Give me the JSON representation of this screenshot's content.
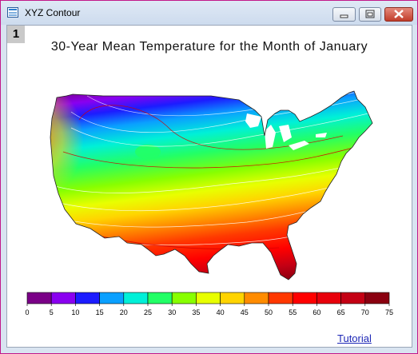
{
  "window": {
    "title": "XYZ Contour",
    "icon": "app-window-icon",
    "controls": [
      "minimize",
      "maximize",
      "close"
    ]
  },
  "page_tab": "1",
  "chart_data": {
    "type": "heatmap",
    "title": "30-Year Mean Temperature for the Month of January",
    "xlabel": "",
    "ylabel": "",
    "colorbar": {
      "ticks": [
        "0",
        "5",
        "10",
        "15",
        "20",
        "25",
        "30",
        "35",
        "40",
        "45",
        "50",
        "55",
        "60",
        "65",
        "70",
        "75"
      ],
      "range": [
        0,
        75
      ],
      "levels": [
        {
          "from": 0,
          "to": 5,
          "color": "#7a0087"
        },
        {
          "from": 5,
          "to": 10,
          "color": "#8a00f0"
        },
        {
          "from": 10,
          "to": 15,
          "color": "#1c1cff"
        },
        {
          "from": 15,
          "to": 20,
          "color": "#0aa0ff"
        },
        {
          "from": 20,
          "to": 25,
          "color": "#00f0d8"
        },
        {
          "from": 25,
          "to": 30,
          "color": "#22ff66"
        },
        {
          "from": 30,
          "to": 35,
          "color": "#88ff00"
        },
        {
          "from": 35,
          "to": 40,
          "color": "#e8ff00"
        },
        {
          "from": 40,
          "to": 45,
          "color": "#ffd400"
        },
        {
          "from": 45,
          "to": 50,
          "color": "#ff8c00"
        },
        {
          "from": 50,
          "to": 55,
          "color": "#ff3800"
        },
        {
          "from": 55,
          "to": 60,
          "color": "#ff0000"
        },
        {
          "from": 60,
          "to": 65,
          "color": "#e8000c"
        },
        {
          "from": 65,
          "to": 70,
          "color": "#c40014"
        },
        {
          "from": 70,
          "to": 75,
          "color": "#8a0010"
        }
      ]
    }
  },
  "link": {
    "label": "Tutorial"
  }
}
